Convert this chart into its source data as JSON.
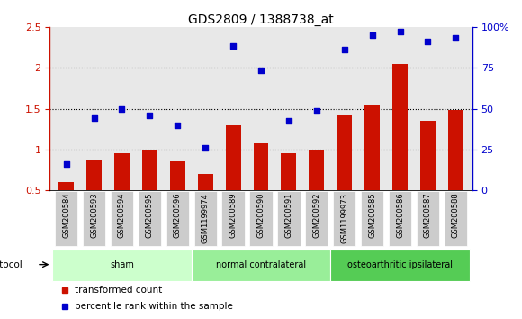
{
  "title": "GDS2809 / 1388738_at",
  "samples": [
    "GSM200584",
    "GSM200593",
    "GSM200594",
    "GSM200595",
    "GSM200596",
    "GSM1199974",
    "GSM200589",
    "GSM200590",
    "GSM200591",
    "GSM200592",
    "GSM1199973",
    "GSM200585",
    "GSM200586",
    "GSM200587",
    "GSM200588"
  ],
  "red_bars": [
    0.6,
    0.88,
    0.95,
    1.0,
    0.85,
    0.7,
    1.3,
    1.08,
    0.95,
    1.0,
    1.42,
    1.55,
    2.05,
    1.35,
    1.48
  ],
  "blue_dots": [
    0.82,
    1.38,
    1.5,
    1.42,
    1.3,
    1.02,
    2.27,
    1.97,
    1.35,
    1.47,
    2.23,
    2.4,
    2.45,
    2.32,
    2.37
  ],
  "ylim": [
    0.5,
    2.5
  ],
  "yticks_left": [
    0.5,
    1.0,
    1.5,
    2.0,
    2.5
  ],
  "ytick_labels_left": [
    "0.5",
    "1",
    "1.5",
    "2",
    "2.5"
  ],
  "ytick_labels_right": [
    "0",
    "25",
    "50",
    "75",
    "100%"
  ],
  "groups": [
    {
      "label": "sham",
      "start": 0,
      "end": 5,
      "color": "#ccffcc"
    },
    {
      "label": "normal contralateral",
      "start": 5,
      "end": 10,
      "color": "#99ee99"
    },
    {
      "label": "osteoarthritic ipsilateral",
      "start": 10,
      "end": 15,
      "color": "#55cc55"
    }
  ],
  "red_color": "#cc1100",
  "blue_color": "#0000cc",
  "bar_width": 0.55,
  "legend_red": "transformed count",
  "legend_blue": "percentile rank within the sample",
  "protocol_label": "protocol",
  "plot_bg": "#e8e8e8",
  "tick_bg": "#cccccc"
}
